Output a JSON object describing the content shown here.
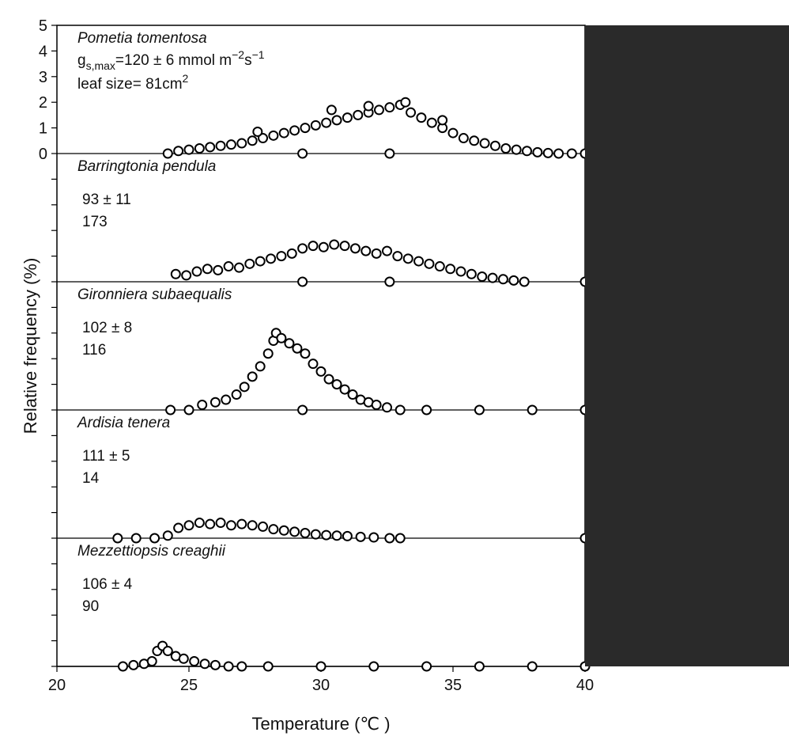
{
  "chart_data": {
    "type": "scatter",
    "xlabel": "Temperature (℃ )",
    "ylabel": "Relative frequency (%)",
    "xlim": [
      20,
      40
    ],
    "x_ticks": [
      "20",
      "25",
      "30",
      "35",
      "40"
    ],
    "ylim": [
      0,
      5
    ],
    "y_ticks": [
      "0",
      "1",
      "2",
      "3",
      "4",
      "5"
    ],
    "grid": false,
    "gs_label": {
      "base": "g",
      "sub": "s,max",
      "text": "=120 ± 6 mmol m",
      "sup1": "−2",
      "mid": "s",
      "sup2": "−1"
    },
    "leaf_label": {
      "text": "leaf size= 81cm",
      "sup": "2"
    },
    "panels": [
      {
        "species": "Pometia tomentosa",
        "gs_max": "120 ± 6",
        "leaf_size": "81",
        "points": [
          [
            24.2,
            0
          ],
          [
            24.6,
            0.1
          ],
          [
            25,
            0.15
          ],
          [
            25.4,
            0.2
          ],
          [
            25.8,
            0.25
          ],
          [
            26.2,
            0.3
          ],
          [
            26.6,
            0.35
          ],
          [
            27,
            0.4
          ],
          [
            27.4,
            0.5
          ],
          [
            27.8,
            0.6
          ],
          [
            28.2,
            0.7
          ],
          [
            28.6,
            0.8
          ],
          [
            29,
            0.9
          ],
          [
            29.4,
            1.0
          ],
          [
            29.8,
            1.1
          ],
          [
            30.2,
            1.2
          ],
          [
            30.6,
            1.3
          ],
          [
            31,
            1.4
          ],
          [
            31.4,
            1.5
          ],
          [
            31.8,
            1.6
          ],
          [
            32.2,
            1.7
          ],
          [
            32.6,
            1.8
          ],
          [
            33,
            1.9
          ],
          [
            33.2,
            2.0
          ],
          [
            33.4,
            1.6
          ],
          [
            33.8,
            1.4
          ],
          [
            34.2,
            1.2
          ],
          [
            34.6,
            1.0
          ],
          [
            35,
            0.8
          ],
          [
            35.4,
            0.6
          ],
          [
            35.8,
            0.5
          ],
          [
            36.2,
            0.4
          ],
          [
            36.6,
            0.3
          ],
          [
            37,
            0.2
          ],
          [
            37.4,
            0.15
          ],
          [
            37.8,
            0.1
          ],
          [
            38.2,
            0.05
          ],
          [
            38.6,
            0.02
          ],
          [
            39,
            0
          ],
          [
            39.5,
            0
          ],
          [
            40,
            0
          ],
          [
            29.3,
            0
          ],
          [
            32.6,
            0
          ],
          [
            30.4,
            1.7
          ],
          [
            27.6,
            0.85
          ],
          [
            31.8,
            1.85
          ],
          [
            34.6,
            1.3
          ]
        ]
      },
      {
        "species": "Barringtonia pendula",
        "gs_max": "93 ± 11",
        "leaf_size": "173",
        "points": [
          [
            24.5,
            0.3
          ],
          [
            24.9,
            0.25
          ],
          [
            25.3,
            0.4
          ],
          [
            25.7,
            0.5
          ],
          [
            26.1,
            0.45
          ],
          [
            26.5,
            0.6
          ],
          [
            26.9,
            0.55
          ],
          [
            27.3,
            0.7
          ],
          [
            27.7,
            0.8
          ],
          [
            28.1,
            0.9
          ],
          [
            28.5,
            1.0
          ],
          [
            28.9,
            1.1
          ],
          [
            29.3,
            1.3
          ],
          [
            29.7,
            1.4
          ],
          [
            30.1,
            1.35
          ],
          [
            30.5,
            1.45
          ],
          [
            30.9,
            1.4
          ],
          [
            31.3,
            1.3
          ],
          [
            31.7,
            1.2
          ],
          [
            32.1,
            1.1
          ],
          [
            32.5,
            1.2
          ],
          [
            32.9,
            1.0
          ],
          [
            33.3,
            0.9
          ],
          [
            33.7,
            0.8
          ],
          [
            34.1,
            0.7
          ],
          [
            34.5,
            0.6
          ],
          [
            34.9,
            0.5
          ],
          [
            35.3,
            0.4
          ],
          [
            35.7,
            0.3
          ],
          [
            36.1,
            0.2
          ],
          [
            36.5,
            0.15
          ],
          [
            36.9,
            0.1
          ],
          [
            37.3,
            0.05
          ],
          [
            37.7,
            0
          ],
          [
            29.3,
            0
          ],
          [
            32.6,
            0
          ],
          [
            40,
            0
          ]
        ]
      },
      {
        "species": "Gironniera subaequalis",
        "gs_max": "102 ± 8",
        "leaf_size": "116",
        "points": [
          [
            24.3,
            0
          ],
          [
            25,
            0
          ],
          [
            25.5,
            0.2
          ],
          [
            26,
            0.3
          ],
          [
            26.4,
            0.4
          ],
          [
            26.8,
            0.6
          ],
          [
            27.1,
            0.9
          ],
          [
            27.4,
            1.3
          ],
          [
            27.7,
            1.7
          ],
          [
            28,
            2.2
          ],
          [
            28.2,
            2.7
          ],
          [
            28.3,
            3.0
          ],
          [
            28.5,
            2.8
          ],
          [
            28.8,
            2.6
          ],
          [
            29.1,
            2.4
          ],
          [
            29.4,
            2.2
          ],
          [
            29.7,
            1.8
          ],
          [
            30,
            1.5
          ],
          [
            30.3,
            1.2
          ],
          [
            30.6,
            1.0
          ],
          [
            30.9,
            0.8
          ],
          [
            31.2,
            0.6
          ],
          [
            31.5,
            0.4
          ],
          [
            31.8,
            0.3
          ],
          [
            32.1,
            0.2
          ],
          [
            32.5,
            0.1
          ],
          [
            33,
            0
          ],
          [
            34,
            0
          ],
          [
            36,
            0
          ],
          [
            38,
            0
          ],
          [
            40,
            0
          ],
          [
            29.3,
            0
          ]
        ]
      },
      {
        "species": "Ardisia tenera",
        "gs_max": "111 ± 5",
        "leaf_size": "14",
        "points": [
          [
            22.3,
            0
          ],
          [
            23,
            0
          ],
          [
            23.7,
            0
          ],
          [
            24.2,
            0.1
          ],
          [
            24.6,
            0.4
          ],
          [
            25,
            0.5
          ],
          [
            25.4,
            0.6
          ],
          [
            25.8,
            0.55
          ],
          [
            26.2,
            0.6
          ],
          [
            26.6,
            0.5
          ],
          [
            27,
            0.55
          ],
          [
            27.4,
            0.5
          ],
          [
            27.8,
            0.45
          ],
          [
            28.2,
            0.35
          ],
          [
            28.6,
            0.3
          ],
          [
            29,
            0.25
          ],
          [
            29.4,
            0.2
          ],
          [
            29.8,
            0.15
          ],
          [
            30.2,
            0.12
          ],
          [
            30.6,
            0.1
          ],
          [
            31,
            0.08
          ],
          [
            31.5,
            0.05
          ],
          [
            32,
            0.03
          ],
          [
            32.6,
            0
          ],
          [
            33,
            0
          ],
          [
            40,
            0
          ]
        ]
      },
      {
        "species": "Mezzettiopsis creaghii",
        "gs_max": "106 ± 4",
        "leaf_size": "90",
        "points": [
          [
            22.5,
            0
          ],
          [
            22.9,
            0.05
          ],
          [
            23.3,
            0.1
          ],
          [
            23.6,
            0.2
          ],
          [
            23.8,
            0.6
          ],
          [
            24,
            0.8
          ],
          [
            24.2,
            0.6
          ],
          [
            24.5,
            0.4
          ],
          [
            24.8,
            0.3
          ],
          [
            25.2,
            0.2
          ],
          [
            25.6,
            0.1
          ],
          [
            26,
            0.05
          ],
          [
            26.5,
            0
          ],
          [
            27,
            0
          ],
          [
            28,
            0
          ],
          [
            30,
            0
          ],
          [
            32,
            0
          ],
          [
            34,
            0
          ],
          [
            36,
            0
          ],
          [
            38,
            0
          ],
          [
            40,
            0
          ]
        ]
      }
    ]
  }
}
